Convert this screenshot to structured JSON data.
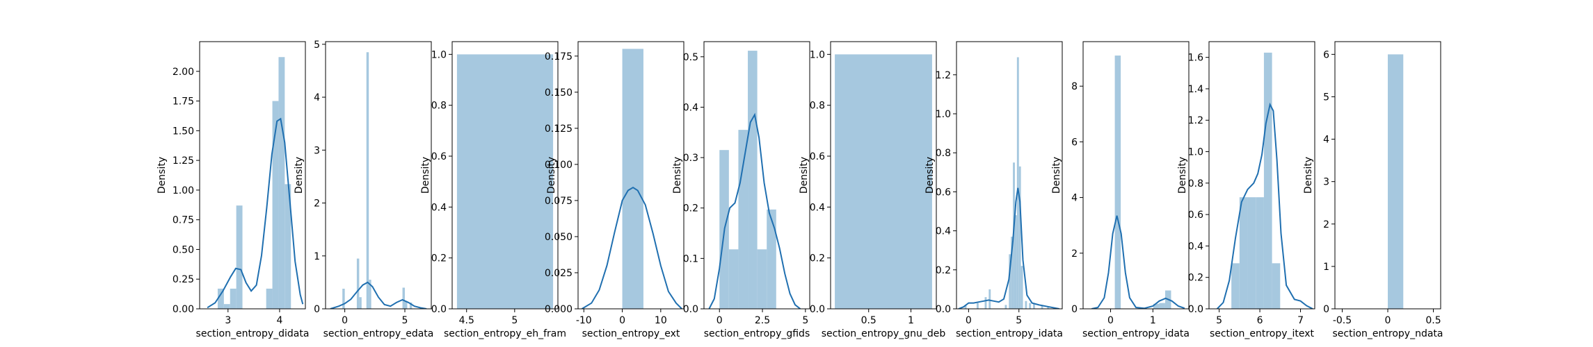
{
  "figure": {
    "bar_color": "#a6c8df",
    "line_color": "#1f6fb0"
  },
  "chart_data": [
    {
      "type": "histogram+kde",
      "xlabel": "section_entropy_didata",
      "ylabel": "Density",
      "xlim": [
        2.45,
        4.5
      ],
      "ylim": [
        0,
        2.25
      ],
      "xticks": [
        3,
        4
      ],
      "yticks": [
        0.0,
        0.25,
        0.5,
        0.75,
        1.0,
        1.25,
        1.5,
        1.75,
        2.0
      ],
      "ytick_labels": [
        "0.00",
        "0.25",
        "0.50",
        "0.75",
        "1.00",
        "1.25",
        "1.50",
        "1.75",
        "2.00"
      ],
      "bars": [
        {
          "x0": 2.8,
          "x1": 2.92,
          "h": 0.17
        },
        {
          "x0": 2.92,
          "x1": 3.04,
          "h": 0.04
        },
        {
          "x0": 3.04,
          "x1": 3.16,
          "h": 0.17
        },
        {
          "x0": 3.16,
          "x1": 3.28,
          "h": 0.87
        },
        {
          "x0": 3.74,
          "x1": 3.86,
          "h": 0.17
        },
        {
          "x0": 3.86,
          "x1": 3.98,
          "h": 1.75
        },
        {
          "x0": 3.98,
          "x1": 4.1,
          "h": 2.12
        },
        {
          "x0": 4.1,
          "x1": 4.22,
          "h": 1.05
        }
      ],
      "kde": [
        [
          2.6,
          0.01
        ],
        [
          2.75,
          0.05
        ],
        [
          2.9,
          0.15
        ],
        [
          3.05,
          0.27
        ],
        [
          3.15,
          0.34
        ],
        [
          3.25,
          0.33
        ],
        [
          3.35,
          0.22
        ],
        [
          3.45,
          0.15
        ],
        [
          3.55,
          0.2
        ],
        [
          3.65,
          0.45
        ],
        [
          3.75,
          0.85
        ],
        [
          3.85,
          1.3
        ],
        [
          3.95,
          1.58
        ],
        [
          4.02,
          1.6
        ],
        [
          4.1,
          1.4
        ],
        [
          4.2,
          0.9
        ],
        [
          4.3,
          0.4
        ],
        [
          4.4,
          0.12
        ],
        [
          4.45,
          0.04
        ]
      ]
    },
    {
      "type": "histogram+kde",
      "xlabel": "section_entropy_edata",
      "ylabel": "Density",
      "xlim": [
        -1.6,
        7.2
      ],
      "ylim": [
        0,
        5.05
      ],
      "xticks": [
        0,
        5
      ],
      "yticks": [
        0,
        1,
        2,
        3,
        4,
        5
      ],
      "ytick_labels": [
        "0",
        "1",
        "2",
        "3",
        "4",
        "5"
      ],
      "bars": [
        {
          "x0": -0.2,
          "x1": 0.0,
          "h": 0.38
        },
        {
          "x0": 1.0,
          "x1": 1.2,
          "h": 0.95
        },
        {
          "x0": 1.2,
          "x1": 1.4,
          "h": 0.22
        },
        {
          "x0": 1.8,
          "x1": 2.0,
          "h": 4.85
        },
        {
          "x0": 2.0,
          "x1": 2.2,
          "h": 0.55
        },
        {
          "x0": 4.8,
          "x1": 5.0,
          "h": 0.4
        },
        {
          "x0": 5.0,
          "x1": 5.2,
          "h": 0.15
        },
        {
          "x0": 5.4,
          "x1": 5.6,
          "h": 0.12
        }
      ],
      "kde": [
        [
          -1.2,
          0.0
        ],
        [
          -0.5,
          0.05
        ],
        [
          0.0,
          0.1
        ],
        [
          0.5,
          0.18
        ],
        [
          1.0,
          0.32
        ],
        [
          1.5,
          0.45
        ],
        [
          1.9,
          0.5
        ],
        [
          2.3,
          0.42
        ],
        [
          2.8,
          0.22
        ],
        [
          3.3,
          0.08
        ],
        [
          3.8,
          0.05
        ],
        [
          4.3,
          0.12
        ],
        [
          4.8,
          0.17
        ],
        [
          5.3,
          0.12
        ],
        [
          5.8,
          0.05
        ],
        [
          6.3,
          0.02
        ],
        [
          6.8,
          0.0
        ]
      ]
    },
    {
      "type": "histogram",
      "xlabel": "section_entropy_eh_fram",
      "ylabel": "Density",
      "xlim": [
        4.35,
        5.45
      ],
      "ylim": [
        0,
        1.05
      ],
      "xticks": [
        4.5,
        5.0
      ],
      "yticks": [
        0.0,
        0.2,
        0.4,
        0.6,
        0.8,
        1.0
      ],
      "ytick_labels": [
        "0.0",
        "0.2",
        "0.4",
        "0.6",
        "0.8",
        "1.0"
      ],
      "bars": [
        {
          "x0": 4.4,
          "x1": 5.4,
          "h": 1.0
        }
      ],
      "kde": []
    },
    {
      "type": "histogram+kde",
      "xlabel": "section_entropy_ext",
      "ylabel": "Density",
      "xlim": [
        -11.5,
        16
      ],
      "ylim": [
        0,
        0.185
      ],
      "xticks": [
        -10,
        0,
        10
      ],
      "yticks": [
        0.0,
        0.025,
        0.05,
        0.075,
        0.1,
        0.125,
        0.15,
        0.175
      ],
      "ytick_labels": [
        "0.000",
        "0.025",
        "0.050",
        "0.075",
        "0.100",
        "0.125",
        "0.150",
        "0.175"
      ],
      "bars": [
        {
          "x0": 0.0,
          "x1": 5.5,
          "h": 0.18
        }
      ],
      "kde": [
        [
          -10.5,
          0.0
        ],
        [
          -8,
          0.004
        ],
        [
          -6,
          0.013
        ],
        [
          -4,
          0.03
        ],
        [
          -2,
          0.053
        ],
        [
          0,
          0.075
        ],
        [
          1.5,
          0.082
        ],
        [
          2.8,
          0.084
        ],
        [
          4,
          0.082
        ],
        [
          6,
          0.072
        ],
        [
          8,
          0.052
        ],
        [
          10,
          0.03
        ],
        [
          12,
          0.012
        ],
        [
          14,
          0.004
        ],
        [
          15.5,
          0.0
        ]
      ]
    },
    {
      "type": "histogram+kde",
      "xlabel": "section_entropy_gfids",
      "ylabel": "Density",
      "xlim": [
        -0.9,
        5.25
      ],
      "ylim": [
        0,
        0.53
      ],
      "xticks": [
        0.0,
        2.5,
        5.0
      ],
      "yticks": [
        0.0,
        0.1,
        0.2,
        0.3,
        0.4,
        0.5
      ],
      "ytick_labels": [
        "0.0",
        "0.1",
        "0.2",
        "0.3",
        "0.4",
        "0.5"
      ],
      "bars": [
        {
          "x0": 0.0,
          "x1": 0.55,
          "h": 0.315
        },
        {
          "x0": 0.55,
          "x1": 1.1,
          "h": 0.118
        },
        {
          "x0": 1.1,
          "x1": 1.65,
          "h": 0.355
        },
        {
          "x0": 1.65,
          "x1": 2.2,
          "h": 0.512
        },
        {
          "x0": 2.2,
          "x1": 2.75,
          "h": 0.118
        },
        {
          "x0": 2.75,
          "x1": 3.3,
          "h": 0.197
        }
      ],
      "kde": [
        [
          -0.6,
          0.0
        ],
        [
          -0.3,
          0.02
        ],
        [
          0.0,
          0.08
        ],
        [
          0.3,
          0.16
        ],
        [
          0.6,
          0.2
        ],
        [
          0.9,
          0.21
        ],
        [
          1.2,
          0.25
        ],
        [
          1.5,
          0.31
        ],
        [
          1.8,
          0.37
        ],
        [
          2.05,
          0.385
        ],
        [
          2.3,
          0.34
        ],
        [
          2.6,
          0.25
        ],
        [
          2.9,
          0.19
        ],
        [
          3.2,
          0.16
        ],
        [
          3.5,
          0.12
        ],
        [
          3.8,
          0.07
        ],
        [
          4.1,
          0.03
        ],
        [
          4.4,
          0.008
        ],
        [
          4.7,
          0.0
        ]
      ]
    },
    {
      "type": "histogram",
      "xlabel": "section_entropy_gnu_deb",
      "ylabel": "Density",
      "xlim": [
        0.05,
        1.3
      ],
      "ylim": [
        0,
        1.05
      ],
      "xticks": [
        0.5,
        1.0
      ],
      "yticks": [
        0.0,
        0.2,
        0.4,
        0.6,
        0.8,
        1.0
      ],
      "ytick_labels": [
        "0.0",
        "0.2",
        "0.4",
        "0.6",
        "0.8",
        "1.0"
      ],
      "bars": [
        {
          "x0": 0.1,
          "x1": 1.25,
          "h": 1.0
        }
      ],
      "kde": []
    },
    {
      "type": "histogram+kde",
      "xlabel": "section_entropy_idata",
      "ylabel": "Density",
      "xlim": [
        -1.2,
        9.3
      ],
      "ylim": [
        0,
        1.37
      ],
      "xticks": [
        0,
        5
      ],
      "yticks": [
        0.0,
        0.2,
        0.4,
        0.6,
        0.8,
        1.0,
        1.2
      ],
      "ytick_labels": [
        "0.0",
        "0.2",
        "0.4",
        "0.6",
        "0.8",
        "1.0",
        "1.2"
      ],
      "bars": [
        {
          "x0": -0.4,
          "x1": -0.2,
          "h": 0.02
        },
        {
          "x0": 0.8,
          "x1": 1.0,
          "h": 0.03
        },
        {
          "x0": 1.6,
          "x1": 1.8,
          "h": 0.06
        },
        {
          "x0": 2.0,
          "x1": 2.2,
          "h": 0.1
        },
        {
          "x0": 3.6,
          "x1": 3.8,
          "h": 0.02
        },
        {
          "x0": 4.0,
          "x1": 4.2,
          "h": 0.28
        },
        {
          "x0": 4.2,
          "x1": 4.4,
          "h": 0.37
        },
        {
          "x0": 4.4,
          "x1": 4.6,
          "h": 0.75
        },
        {
          "x0": 4.6,
          "x1": 4.8,
          "h": 0.48
        },
        {
          "x0": 4.8,
          "x1": 5.0,
          "h": 1.29
        },
        {
          "x0": 5.0,
          "x1": 5.2,
          "h": 0.73
        },
        {
          "x0": 5.2,
          "x1": 5.4,
          "h": 0.22
        },
        {
          "x0": 5.6,
          "x1": 5.8,
          "h": 0.04
        },
        {
          "x0": 6.0,
          "x1": 6.2,
          "h": 0.03
        },
        {
          "x0": 6.4,
          "x1": 6.6,
          "h": 0.03
        },
        {
          "x0": 7.2,
          "x1": 7.4,
          "h": 0.02
        },
        {
          "x0": 7.8,
          "x1": 8.0,
          "h": 0.01
        }
      ],
      "kde": [
        [
          -1.0,
          0.0
        ],
        [
          -0.5,
          0.01
        ],
        [
          0,
          0.03
        ],
        [
          0.5,
          0.03
        ],
        [
          1.0,
          0.035
        ],
        [
          1.5,
          0.04
        ],
        [
          2.0,
          0.045
        ],
        [
          2.5,
          0.04
        ],
        [
          3.0,
          0.035
        ],
        [
          3.5,
          0.05
        ],
        [
          4.0,
          0.15
        ],
        [
          4.4,
          0.35
        ],
        [
          4.7,
          0.55
        ],
        [
          4.9,
          0.62
        ],
        [
          5.1,
          0.55
        ],
        [
          5.4,
          0.25
        ],
        [
          5.8,
          0.07
        ],
        [
          6.3,
          0.03
        ],
        [
          7.0,
          0.02
        ],
        [
          8.0,
          0.01
        ],
        [
          9.0,
          0.0
        ]
      ]
    },
    {
      "type": "histogram+kde",
      "xlabel": "section_entropy_idata",
      "ylabel": "Density",
      "xlim": [
        -0.65,
        1.85
      ],
      "ylim": [
        0,
        9.6
      ],
      "xticks": [
        0,
        1
      ],
      "yticks": [
        0,
        2,
        4,
        6,
        8
      ],
      "ytick_labels": [
        "0",
        "2",
        "4",
        "6",
        "8"
      ],
      "bars": [
        {
          "x0": 0.1,
          "x1": 0.24,
          "h": 9.1
        },
        {
          "x0": 1.01,
          "x1": 1.15,
          "h": 0.18
        },
        {
          "x0": 1.15,
          "x1": 1.29,
          "h": 0.21
        },
        {
          "x0": 1.29,
          "x1": 1.43,
          "h": 0.66
        }
      ],
      "kde": [
        [
          -0.45,
          0.0
        ],
        [
          -0.3,
          0.05
        ],
        [
          -0.15,
          0.4
        ],
        [
          -0.05,
          1.3
        ],
        [
          0.05,
          2.7
        ],
        [
          0.15,
          3.35
        ],
        [
          0.25,
          2.7
        ],
        [
          0.35,
          1.3
        ],
        [
          0.45,
          0.4
        ],
        [
          0.6,
          0.05
        ],
        [
          0.8,
          0.02
        ],
        [
          1.0,
          0.1
        ],
        [
          1.15,
          0.28
        ],
        [
          1.3,
          0.38
        ],
        [
          1.45,
          0.28
        ],
        [
          1.6,
          0.1
        ],
        [
          1.75,
          0.02
        ]
      ]
    },
    {
      "type": "histogram+kde",
      "xlabel": "section_entropy_itext",
      "ylabel": "Density",
      "xlim": [
        4.75,
        7.35
      ],
      "ylim": [
        0,
        1.7
      ],
      "xticks": [
        5,
        6,
        7
      ],
      "yticks": [
        0.0,
        0.2,
        0.4,
        0.6,
        0.8,
        1.0,
        1.2,
        1.4,
        1.6
      ],
      "ytick_labels": [
        "0.0",
        "0.2",
        "0.4",
        "0.6",
        "0.8",
        "1.0",
        "1.2",
        "1.4",
        "1.6"
      ],
      "bars": [
        {
          "x0": 5.3,
          "x1": 5.5,
          "h": 0.29
        },
        {
          "x0": 5.5,
          "x1": 5.7,
          "h": 0.71
        },
        {
          "x0": 5.7,
          "x1": 5.9,
          "h": 0.71
        },
        {
          "x0": 5.9,
          "x1": 6.1,
          "h": 0.71
        },
        {
          "x0": 6.1,
          "x1": 6.3,
          "h": 1.63
        },
        {
          "x0": 6.3,
          "x1": 6.5,
          "h": 0.29
        }
      ],
      "kde": [
        [
          4.95,
          0.0
        ],
        [
          5.1,
          0.04
        ],
        [
          5.25,
          0.18
        ],
        [
          5.4,
          0.45
        ],
        [
          5.55,
          0.68
        ],
        [
          5.7,
          0.76
        ],
        [
          5.85,
          0.8
        ],
        [
          5.95,
          0.86
        ],
        [
          6.05,
          0.98
        ],
        [
          6.15,
          1.18
        ],
        [
          6.25,
          1.3
        ],
        [
          6.33,
          1.26
        ],
        [
          6.42,
          0.95
        ],
        [
          6.52,
          0.48
        ],
        [
          6.65,
          0.15
        ],
        [
          6.85,
          0.06
        ],
        [
          7.0,
          0.05
        ],
        [
          7.15,
          0.02
        ],
        [
          7.3,
          0.0
        ]
      ]
    },
    {
      "type": "histogram",
      "xlabel": "section_entropy_ndata",
      "ylabel": "Density",
      "xlim": [
        -0.58,
        0.58
      ],
      "ylim": [
        0,
        6.3
      ],
      "xticks": [
        -0.5,
        0.0,
        0.5
      ],
      "yticks": [
        0,
        1,
        2,
        3,
        4,
        5,
        6
      ],
      "ytick_labels": [
        "0",
        "1",
        "2",
        "3",
        "4",
        "5",
        "6"
      ],
      "bars": [
        {
          "x0": 0.0,
          "x1": 0.17,
          "h": 6.0
        }
      ],
      "kde": []
    }
  ]
}
